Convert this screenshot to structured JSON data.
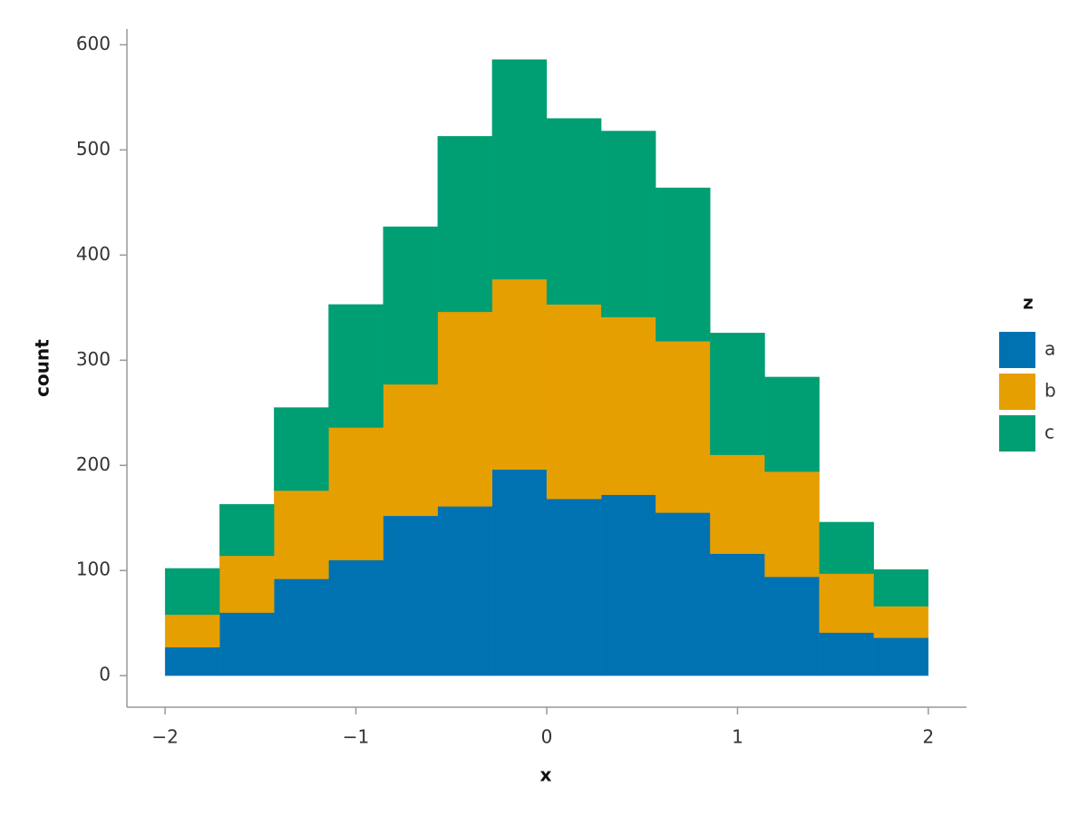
{
  "chart_data": {
    "type": "histogram",
    "x_label": "x",
    "y_label": "count",
    "legend_title": "z",
    "legend": "right",
    "stacked": true,
    "bins": [
      -2,
      -1.7143,
      -1.4286,
      -1.1429,
      -0.8571,
      -0.5714,
      -0.2857,
      0,
      0.2857,
      0.5714,
      0.8571,
      1.1429,
      1.4286,
      1.7143,
      2
    ],
    "series": [
      {
        "name": "a",
        "color": "#0072b2",
        "values": [
          27,
          60,
          92,
          110,
          152,
          161,
          196,
          168,
          172,
          155,
          116,
          94,
          41,
          36
        ]
      },
      {
        "name": "b",
        "color": "#e69f00",
        "values": [
          31,
          54,
          84,
          126,
          125,
          185,
          181,
          185,
          169,
          163,
          94,
          100,
          56,
          30
        ]
      },
      {
        "name": "c",
        "color": "#009e73",
        "values": [
          44,
          49,
          79,
          117,
          150,
          167,
          209,
          177,
          177,
          146,
          116,
          90,
          49,
          35
        ]
      }
    ],
    "xlim": [
      -2.2,
      2.2
    ],
    "ylim": [
      -30,
      615
    ],
    "xticks": [
      {
        "value": -2,
        "label": "−2"
      },
      {
        "value": -1,
        "label": "−1"
      },
      0,
      1,
      2
    ],
    "yticks": [
      0,
      100,
      200,
      300,
      400,
      500,
      600
    ]
  }
}
